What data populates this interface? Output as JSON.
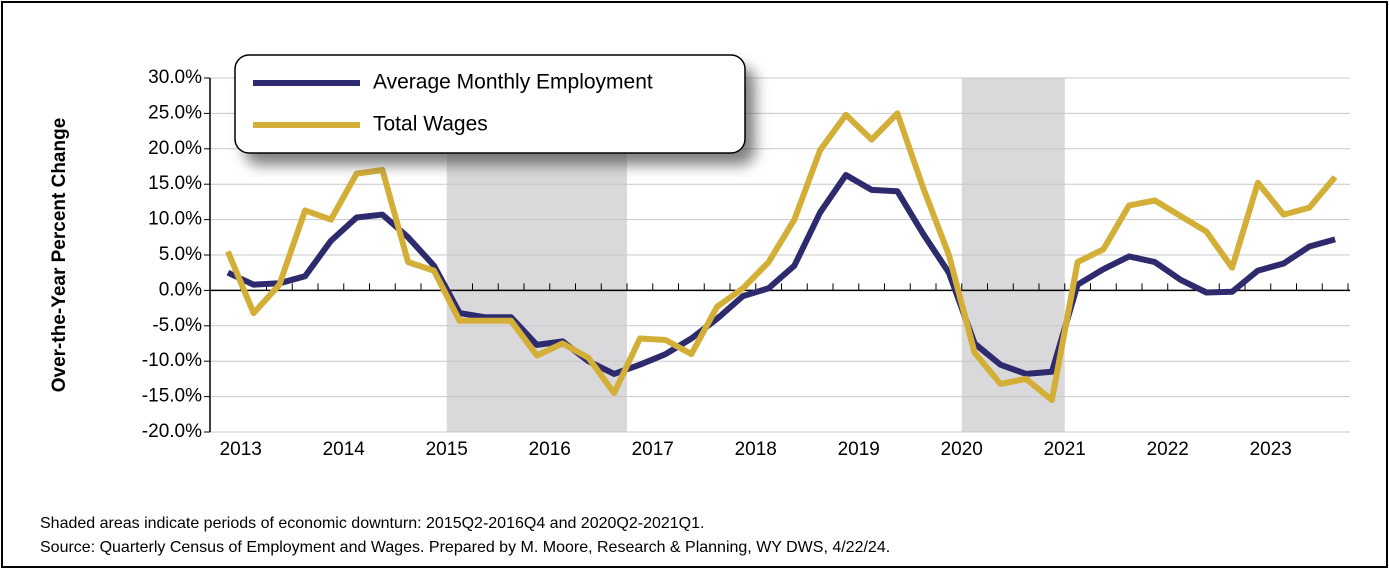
{
  "chart_data": {
    "type": "line",
    "ylabel": "Over-the-Year Percent Change",
    "categories": [
      "2013",
      null,
      null,
      null,
      "2014",
      null,
      null,
      null,
      "2015",
      null,
      null,
      null,
      "2016",
      null,
      null,
      null,
      "2017",
      null,
      null,
      null,
      "2018",
      null,
      null,
      null,
      "2019",
      null,
      null,
      null,
      "2020",
      null,
      null,
      null,
      "2021",
      null,
      null,
      null,
      "2022",
      null,
      null,
      null,
      "2023",
      null,
      null,
      null
    ],
    "series": [
      {
        "name": "Average Monthly Employment",
        "color": "#2e2a6e",
        "values": [
          2.5,
          0.8,
          1.0,
          2.0,
          7.0,
          10.3,
          10.7,
          7.5,
          3.5,
          -3.2,
          -3.8,
          -3.8,
          -7.7,
          -7.2,
          -10.0,
          -11.8,
          -10.5,
          -9.0,
          -6.8,
          -4.0,
          -0.8,
          0.3,
          3.5,
          11.0,
          16.3,
          14.2,
          14.0,
          8.0,
          2.5,
          -7.5,
          -10.5,
          -11.8,
          -11.5,
          0.8,
          3.0,
          4.8,
          4.0,
          1.5,
          -0.3,
          -0.2,
          2.8,
          3.8,
          6.2,
          7.2
        ]
      },
      {
        "name": "Total Wages",
        "color": "#d4af37",
        "values": [
          5.5,
          -3.2,
          0.8,
          11.3,
          10.0,
          16.5,
          17.0,
          4.0,
          2.8,
          -4.3,
          -4.3,
          -4.3,
          -9.2,
          -7.5,
          -9.5,
          -14.5,
          -6.8,
          -7.0,
          -9.0,
          -2.3,
          0.3,
          4.0,
          10.0,
          19.8,
          24.8,
          21.3,
          25.0,
          14.5,
          5.0,
          -8.8,
          -13.2,
          -12.5,
          -15.5,
          4.0,
          5.8,
          12.0,
          12.7,
          10.5,
          8.3,
          3.2,
          15.2,
          10.7,
          11.7,
          16.0
        ]
      }
    ],
    "shaded_ranges": [
      [
        9,
        15
      ],
      [
        29,
        32
      ]
    ],
    "shade_color": "#d9d9db",
    "ylim": [
      -20,
      30
    ],
    "yticks": [
      {
        "value": -20,
        "label": "-20.0%"
      },
      {
        "value": -15,
        "label": "-15.0%"
      },
      {
        "value": -10,
        "label": "-10.0%"
      },
      {
        "value": -5,
        "label": "-5.0%"
      },
      {
        "value": 0,
        "label": "0.0%"
      },
      {
        "value": 5,
        "label": "5.0%"
      },
      {
        "value": 10,
        "label": "10.0%"
      },
      {
        "value": 15,
        "label": "15.0%"
      },
      {
        "value": 20,
        "label": "20.0%"
      },
      {
        "value": 25,
        "label": "25.0%"
      },
      {
        "value": 30,
        "label": "30.0%"
      }
    ],
    "grid": true,
    "legend": "upper left",
    "notes": [
      "Shaded areas indicate periods of economic downturn: 2015Q2-2016Q4 and 2020Q2-2021Q1.",
      "Source: Quarterly Census of Employment and Wages. Prepared by M. Moore, Research & Planning, WY DWS, 4/22/24."
    ]
  }
}
